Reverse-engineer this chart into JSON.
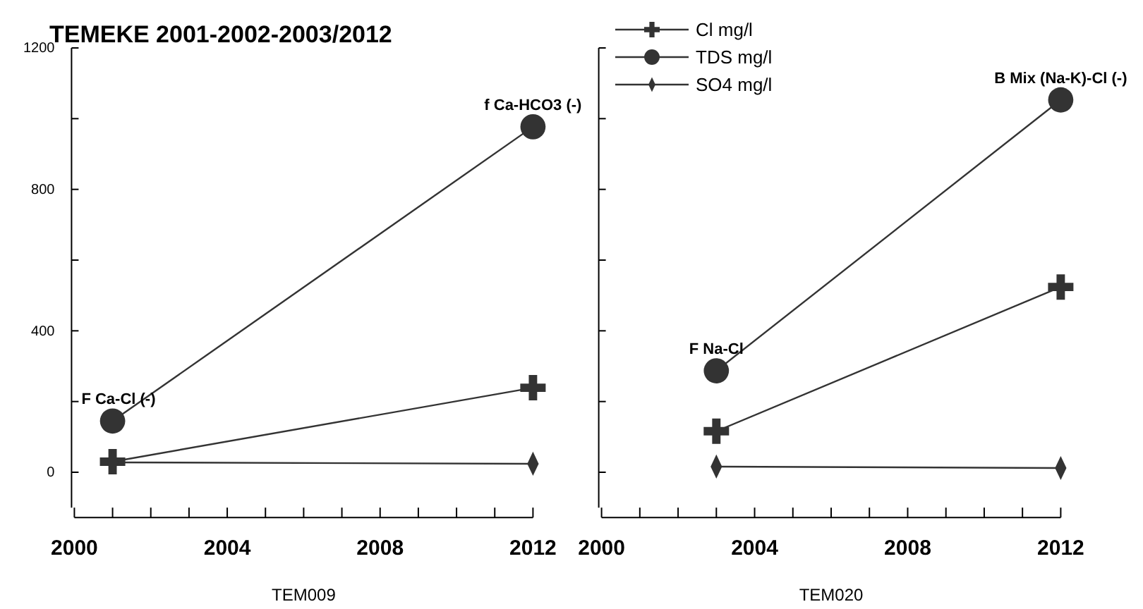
{
  "chart_data": [
    {
      "type": "line",
      "title": "TEMEKE 2001-2002-2003/2012",
      "xlabel": "TEM009",
      "xlim": [
        2000,
        2012
      ],
      "xticks": [
        2000,
        {
          "value": 2001,
          "label": null
        },
        {
          "value": 2002,
          "label": null
        },
        {
          "value": 2003,
          "label": null
        },
        2004,
        {
          "value": 2005,
          "label": null
        },
        {
          "value": 2006,
          "label": null
        },
        {
          "value": 2007,
          "label": null
        },
        2008,
        {
          "value": 2009,
          "label": null
        },
        {
          "value": 2010,
          "label": null
        },
        {
          "value": 2011,
          "label": null
        },
        2012
      ],
      "ylim": [
        -100,
        1200
      ],
      "yticks": [
        0,
        {
          "value": 200,
          "label": null
        },
        400,
        {
          "value": 600,
          "label": null
        },
        800,
        {
          "value": 1000,
          "label": null
        },
        1200
      ],
      "x": [
        2001,
        2012
      ],
      "legend": "top",
      "grid": false,
      "line_style": "solid",
      "series": [
        {
          "name": "Cl mg/l",
          "color": "#333333",
          "marker": "cross",
          "values": [
            30,
            239
          ]
        },
        {
          "name": "TDS mg/l",
          "color": "#333333",
          "marker": "circle",
          "values": [
            145,
            977
          ]
        },
        {
          "name": "SO4 mg/l",
          "color": "#333333",
          "marker": "diamond",
          "values": [
            28,
            24
          ]
        }
      ],
      "annotations": [
        {
          "text": "F Ca-Cl (-)",
          "x": 2001,
          "y": 145
        },
        {
          "text": "f Ca-HCO3 (-)",
          "x": 2012,
          "y": 977
        }
      ]
    },
    {
      "type": "line",
      "xlabel": "TEM020",
      "xlim": [
        2000,
        2012
      ],
      "xticks": [
        2000,
        {
          "value": 2001,
          "label": null
        },
        {
          "value": 2002,
          "label": null
        },
        {
          "value": 2003,
          "label": null
        },
        2004,
        {
          "value": 2005,
          "label": null
        },
        {
          "value": 2006,
          "label": null
        },
        {
          "value": 2007,
          "label": null
        },
        2008,
        {
          "value": 2009,
          "label": null
        },
        {
          "value": 2010,
          "label": null
        },
        {
          "value": 2011,
          "label": null
        },
        2012
      ],
      "ylim": [
        -100,
        1200
      ],
      "yticks": [
        0,
        {
          "value": 200,
          "label": null
        },
        400,
        {
          "value": 600,
          "label": null
        },
        800,
        {
          "value": 1000,
          "label": null
        },
        1200
      ],
      "tick_labels": "x",
      "x": [
        2003,
        2012
      ],
      "grid": false,
      "line_style": "solid",
      "series": [
        {
          "color": "#333333",
          "marker": "cross",
          "values": [
            116,
            524
          ]
        },
        {
          "color": "#333333",
          "marker": "circle",
          "values": [
            287,
            1053
          ]
        },
        {
          "color": "#333333",
          "marker": "diamond",
          "values": [
            16,
            12
          ]
        }
      ],
      "annotations": [
        {
          "text": "F Na-Cl",
          "x": 2003,
          "y": 287
        },
        {
          "text": "B Mix (Na-K)-Cl (-)",
          "x": 2012,
          "y": 1053
        }
      ]
    }
  ]
}
